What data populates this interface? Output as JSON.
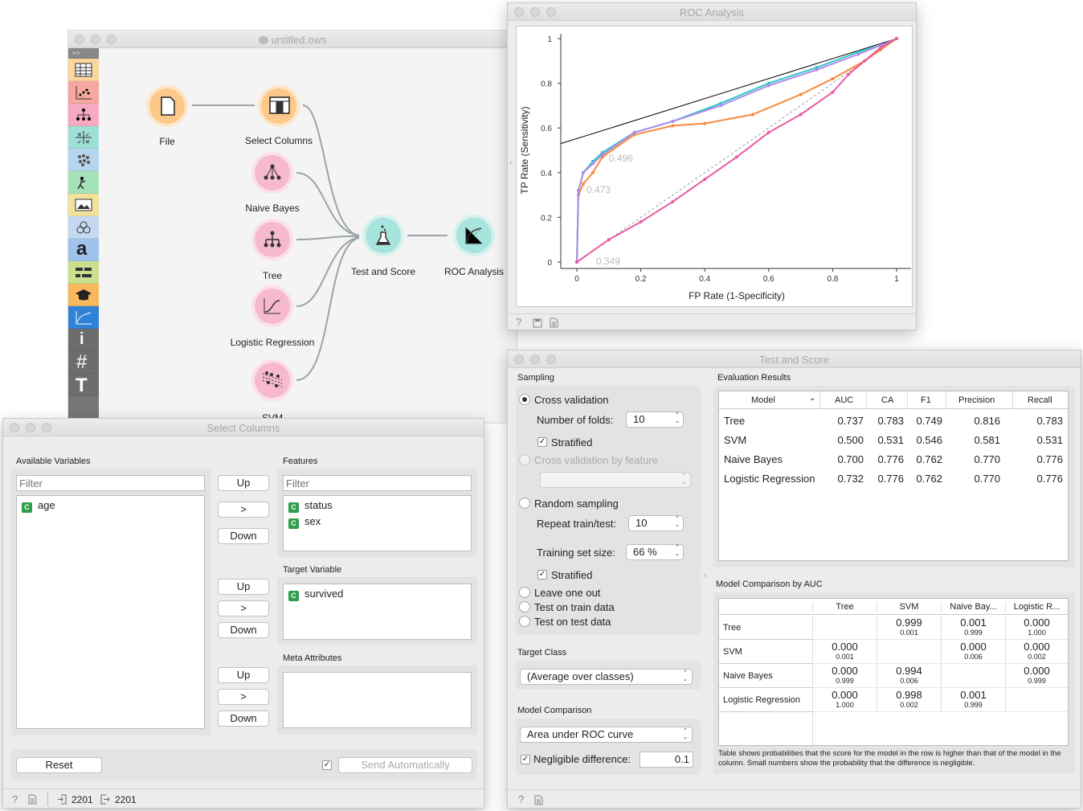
{
  "workflow": {
    "title": "untitled.ows",
    "nodes": [
      {
        "label": "File"
      },
      {
        "label": "Select Columns"
      },
      {
        "label": "Naive Bayes"
      },
      {
        "label": "Tree"
      },
      {
        "label": "Logistic Regression"
      },
      {
        "label": "SVM"
      },
      {
        "label": "Test and Score"
      },
      {
        "label": "ROC Analysis"
      }
    ]
  },
  "roc": {
    "title": "ROC Analysis",
    "chart_data": {
      "type": "line",
      "xlabel": "FP Rate (1-Specificity)",
      "ylabel": "TP Rate (Sensitivity)",
      "xlim": [
        0,
        1
      ],
      "ylim": [
        0,
        1
      ],
      "xticks": [
        "0",
        "0.2",
        "0.4",
        "0.6",
        "0.8",
        "1"
      ],
      "yticks": [
        "0",
        "0.2",
        "0.4",
        "0.6",
        "0.8",
        "1"
      ],
      "annotations": [
        "0.496",
        "0.473",
        "0.349"
      ],
      "series": [
        {
          "color": "#f7893e",
          "x": [
            0,
            0.005,
            0.02,
            0.05,
            0.08,
            0.18,
            0.3,
            0.4,
            0.55,
            0.7,
            0.8,
            0.9,
            0.95,
            1
          ],
          "y": [
            0,
            0.3,
            0.35,
            0.4,
            0.47,
            0.57,
            0.61,
            0.62,
            0.66,
            0.75,
            0.82,
            0.9,
            0.95,
            1
          ]
        },
        {
          "color": "#2ec6c6",
          "x": [
            0,
            0.005,
            0.02,
            0.05,
            0.08,
            0.18,
            0.3,
            0.45,
            0.6,
            0.75,
            0.88,
            0.95,
            1
          ],
          "y": [
            0,
            0.32,
            0.4,
            0.45,
            0.49,
            0.58,
            0.63,
            0.71,
            0.8,
            0.87,
            0.94,
            0.97,
            1
          ]
        },
        {
          "color": "#b08be8",
          "x": [
            0,
            0.005,
            0.02,
            0.05,
            0.08,
            0.18,
            0.3,
            0.45,
            0.6,
            0.75,
            0.88,
            0.95,
            1
          ],
          "y": [
            0,
            0.32,
            0.4,
            0.44,
            0.48,
            0.58,
            0.63,
            0.7,
            0.79,
            0.86,
            0.93,
            0.97,
            1
          ]
        },
        {
          "color": "#e85ba5",
          "x": [
            0,
            0.1,
            0.2,
            0.3,
            0.4,
            0.5,
            0.6,
            0.7,
            0.8,
            0.85,
            0.9,
            0.95,
            1
          ],
          "y": [
            0,
            0.1,
            0.18,
            0.27,
            0.37,
            0.47,
            0.58,
            0.66,
            0.76,
            0.84,
            0.9,
            0.96,
            1
          ]
        }
      ],
      "hull": {
        "x": [
          -0.05,
          1
        ],
        "y": [
          0.53,
          1
        ]
      }
    },
    "status_icons": [
      "help-icon",
      "save-icon",
      "report-icon"
    ]
  },
  "test_score": {
    "title": "Test and Score",
    "sampling_label": "Sampling",
    "cross_validation": "Cross validation",
    "folds_label": "Number of folds:",
    "folds": "10",
    "stratified": "Stratified",
    "cv_feature": "Cross validation by feature",
    "random_sampling": "Random sampling",
    "repeat_label": "Repeat train/test:",
    "repeat": "10",
    "train_size_label": "Training set size:",
    "train_size": "66 %",
    "stratified2": "Stratified",
    "leave_one_out": "Leave one out",
    "test_train": "Test on train data",
    "test_test": "Test on test data",
    "target_class_label": "Target Class",
    "target_class": "(Average over classes)",
    "model_comparison_label": "Model Comparison",
    "comparison_metric": "Area under ROC curve",
    "negligible_label": "Negligible difference:",
    "negligible": "0.1",
    "eval_title": "Evaluation Results",
    "columns": [
      "Model",
      "AUC",
      "CA",
      "F1",
      "Precision",
      "Recall"
    ],
    "rows": [
      [
        "Tree",
        "0.737",
        "0.783",
        "0.749",
        "0.816",
        "0.783"
      ],
      [
        "SVM",
        "0.500",
        "0.531",
        "0.546",
        "0.581",
        "0.531"
      ],
      [
        "Naive Bayes",
        "0.700",
        "0.776",
        "0.762",
        "0.770",
        "0.776"
      ],
      [
        "Logistic Regression",
        "0.732",
        "0.776",
        "0.762",
        "0.770",
        "0.776"
      ]
    ],
    "cmp_title": "Model Comparison by AUC",
    "cmp_cols": [
      "Tree",
      "SVM",
      "Naive Bay...",
      "Logistic R..."
    ],
    "cmp_rows": [
      {
        "name": "Tree",
        "cells": [
          [
            "",
            ""
          ],
          [
            "0.999",
            "0.001"
          ],
          [
            "0.001",
            "0.999"
          ],
          [
            "0.000",
            "1.000"
          ]
        ]
      },
      {
        "name": "SVM",
        "cells": [
          [
            "0.000",
            "0.001"
          ],
          [
            "",
            ""
          ],
          [
            "0.000",
            "0.006"
          ],
          [
            "0.000",
            "0.002"
          ]
        ]
      },
      {
        "name": "Naive Bayes",
        "cells": [
          [
            "0.000",
            "0.999"
          ],
          [
            "0.994",
            "0.006"
          ],
          [
            "",
            ""
          ],
          [
            "0.000",
            "0.999"
          ]
        ]
      },
      {
        "name": "Logistic Regression",
        "cells": [
          [
            "0.000",
            "1.000"
          ],
          [
            "0.998",
            "0.002"
          ],
          [
            "0.001",
            "0.999"
          ],
          [
            "",
            ""
          ]
        ]
      }
    ],
    "note": "Table shows probabilities that the score for the model in the row is higher than that of the model in the column. Small numbers show the probability that the difference is negligible."
  },
  "select_columns": {
    "title": "Select Columns",
    "available_label": "Available Variables",
    "filter_placeholder": "Filter",
    "available": [
      "age"
    ],
    "features_label": "Features",
    "features": [
      "status",
      "sex"
    ],
    "target_label": "Target Variable",
    "target": [
      "survived"
    ],
    "meta_label": "Meta Attributes",
    "up": "Up",
    "move": ">",
    "down": "Down",
    "reset": "Reset",
    "send": "Send Automatically",
    "in_count": "2201",
    "out_count": "2201"
  }
}
